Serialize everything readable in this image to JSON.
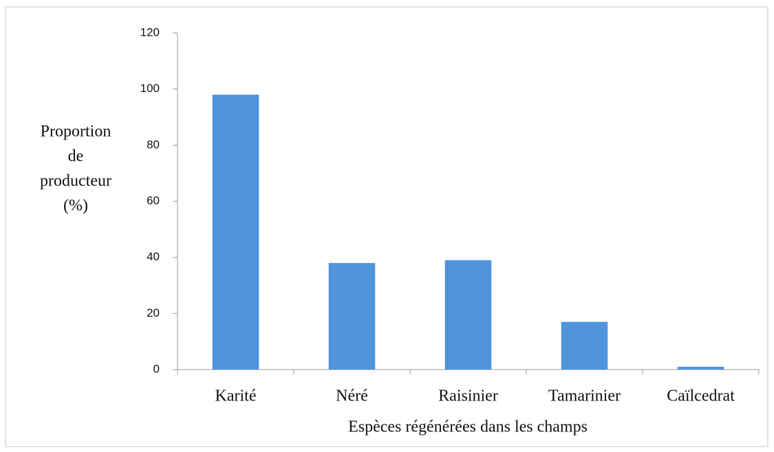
{
  "chart_data": {
    "type": "bar",
    "y_label_lines": [
      "Proportion",
      "de",
      "producteur",
      "(%)"
    ],
    "x_label": "Espèces régénérées dans les champs",
    "categories": [
      "Karité",
      "Néré",
      "Raisinier",
      "Tamarinier",
      "Caïlcedrat"
    ],
    "values": [
      98,
      38,
      39,
      17,
      1
    ],
    "color": "#4f94dc",
    "ylim": [
      0,
      120
    ],
    "yticks": [
      0,
      20,
      40,
      60,
      80,
      100,
      120
    ],
    "grid": false
  }
}
